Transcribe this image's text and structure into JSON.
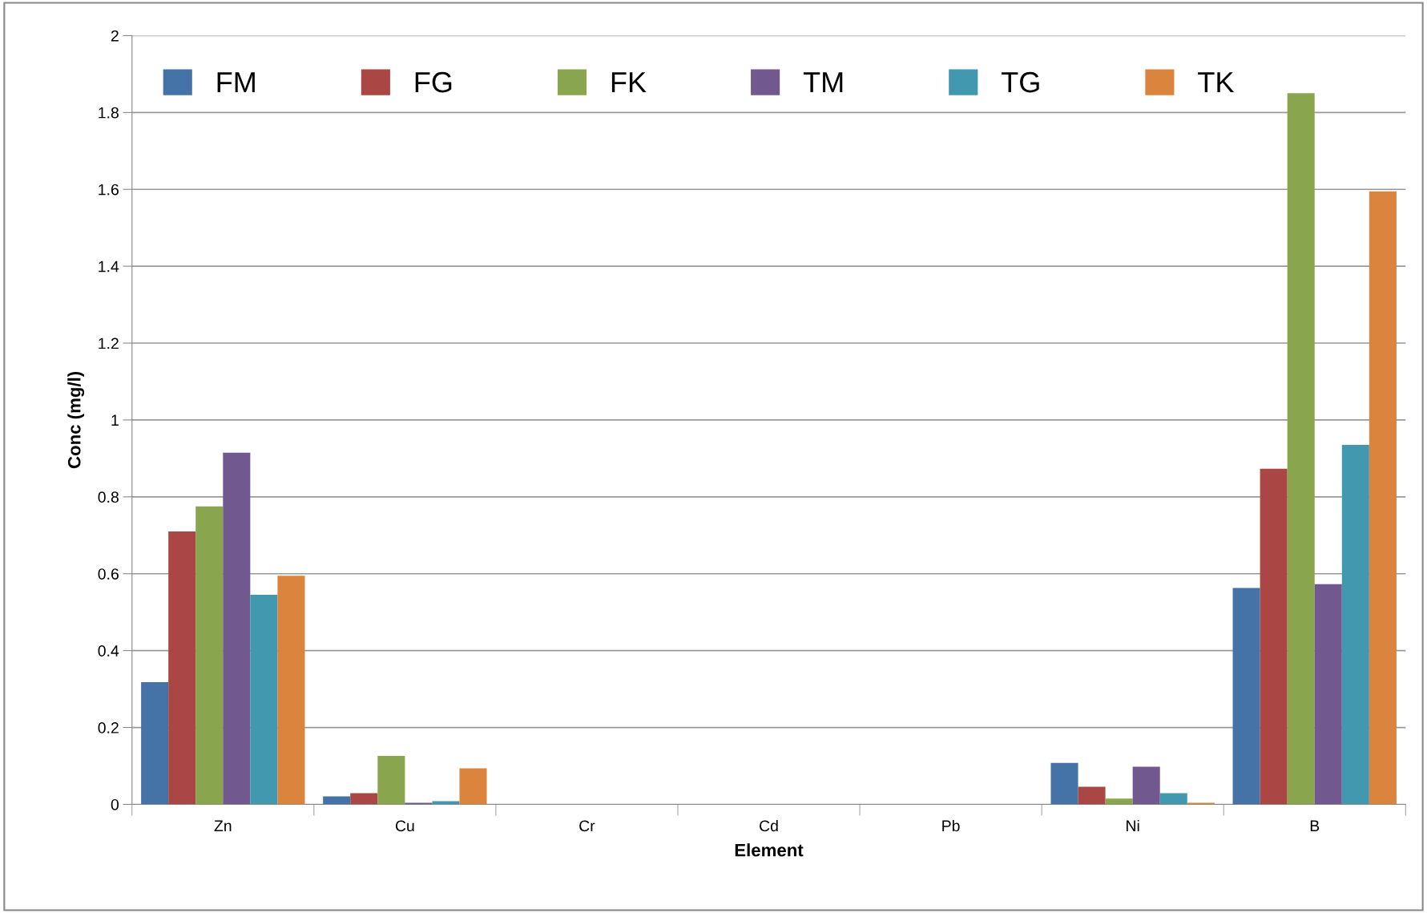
{
  "chart_data": {
    "type": "bar",
    "xlabel": "Element",
    "ylabel": "Conc (mg/l)",
    "categories": [
      "Zn",
      "Cu",
      "Cr",
      "Cd",
      "Pb",
      "Ni",
      "B"
    ],
    "series": [
      {
        "name": "FM",
        "color": "#4572a7",
        "values": [
          0.318,
          0.021,
          0,
          0,
          0,
          0.108,
          0.563
        ]
      },
      {
        "name": "FG",
        "color": "#aa4643",
        "values": [
          0.71,
          0.029,
          0,
          0,
          0,
          0.046,
          0.873
        ]
      },
      {
        "name": "FK",
        "color": "#89a54e",
        "values": [
          0.775,
          0.126,
          0,
          0,
          0,
          0.015,
          1.85
        ]
      },
      {
        "name": "TM",
        "color": "#71588f",
        "values": [
          0.915,
          0.004,
          0,
          0,
          0,
          0.098,
          0.573
        ]
      },
      {
        "name": "TG",
        "color": "#4198af",
        "values": [
          0.545,
          0.008,
          0,
          0,
          0,
          0.029,
          0.935
        ]
      },
      {
        "name": "TK",
        "color": "#db843d",
        "values": [
          0.595,
          0.094,
          0,
          0,
          0,
          0.004,
          1.595
        ]
      }
    ],
    "ylim": [
      0,
      2
    ],
    "yticks": [
      0,
      0.2,
      0.4,
      0.6,
      0.8,
      1,
      1.2,
      1.4,
      1.6,
      1.8,
      2
    ],
    "grid": "y",
    "legend": "top"
  }
}
